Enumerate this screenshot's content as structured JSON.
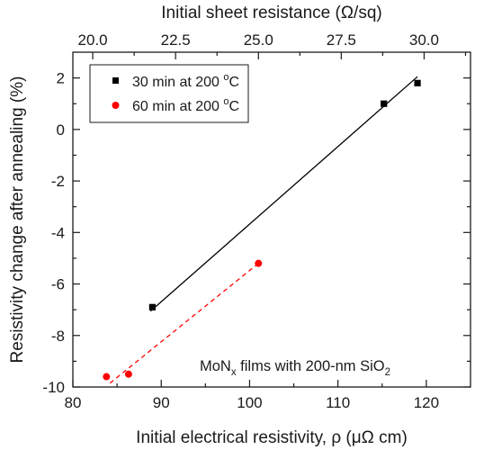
{
  "chart_data": {
    "type": "scatter",
    "title": "",
    "xlabel": "Initial electrical resistivity, ρ (μΩ cm)",
    "ylabel": "Resistivity change after annealing (%)",
    "x2label": "Initial sheet resistance (Ω/sq)",
    "xlim": [
      80,
      125
    ],
    "ylim": [
      -10,
      3
    ],
    "x2lim": [
      19.4,
      31.4
    ],
    "x_ticks": [
      80,
      90,
      100,
      110,
      120
    ],
    "y_ticks": [
      2,
      0,
      -2,
      -4,
      -6,
      -8,
      -10
    ],
    "x2_ticks": [
      "20.0",
      "22.5",
      "25.0",
      "27.5",
      "30.0"
    ],
    "x2_tick_values": [
      20.0,
      22.5,
      25.0,
      27.5,
      30.0
    ],
    "annotation": "MoNx films with 200-nm SiO2",
    "annotation_parts": {
      "main": "MoN",
      "sub1": "x",
      "middle": " films with 200-nm SiO",
      "sub2": "2"
    },
    "legend_placement": "top-left",
    "grid": false,
    "series": [
      {
        "name": "30 min at 200 °C",
        "label_text": "30 min at 200 ",
        "label_sup": "o",
        "label_unit": "C",
        "color": "#000000",
        "marker": "square",
        "fit_line": "solid",
        "points": [
          {
            "x": 89,
            "y": -6.9
          },
          {
            "x": 115.2,
            "y": 1.0
          },
          {
            "x": 119,
            "y": 1.8
          }
        ],
        "fit": {
          "x": [
            88.8,
            119
          ],
          "y": [
            -7.05,
            2.05
          ]
        }
      },
      {
        "name": "60 min at 200 °C",
        "label_text": "60 min at 200 ",
        "label_sup": "o",
        "label_unit": "C",
        "color": "#ff0000",
        "marker": "circle",
        "fit_line": "dashed",
        "points": [
          {
            "x": 83.8,
            "y": -9.6
          },
          {
            "x": 86.3,
            "y": -9.5
          },
          {
            "x": 101,
            "y": -5.2
          }
        ],
        "fit": {
          "x": [
            84.2,
            101
          ],
          "y": [
            -9.85,
            -5.2
          ]
        }
      }
    ]
  }
}
